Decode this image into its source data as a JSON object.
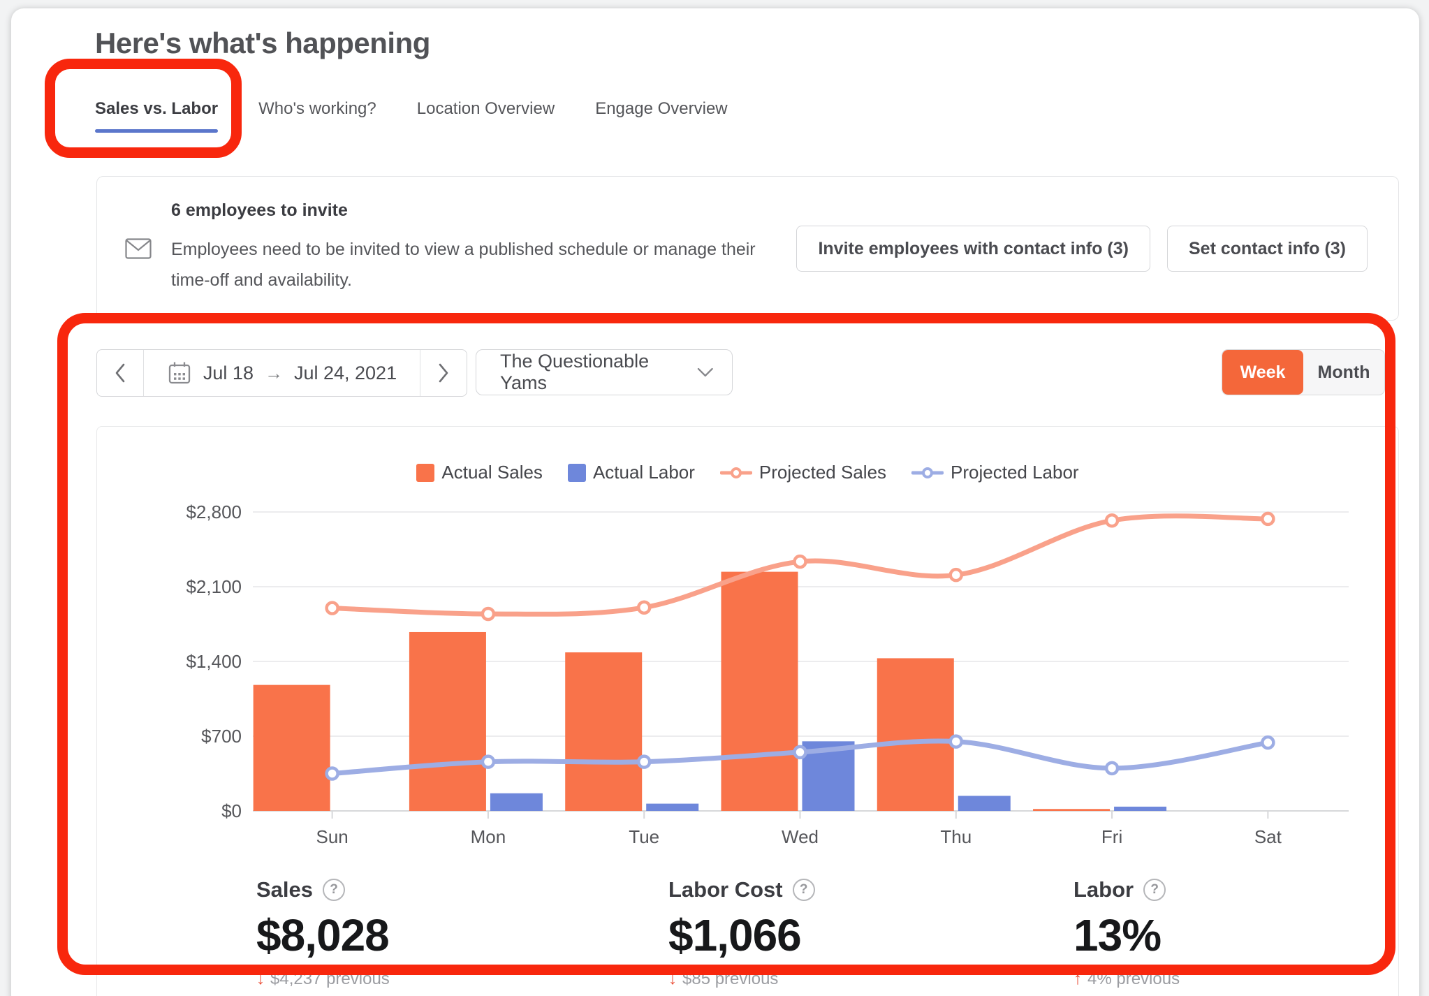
{
  "header": {
    "title": "Here's what's happening"
  },
  "tabs": [
    {
      "label": "Sales vs. Labor",
      "active": true
    },
    {
      "label": "Who's working?",
      "active": false
    },
    {
      "label": "Location Overview",
      "active": false
    },
    {
      "label": "Engage Overview",
      "active": false
    }
  ],
  "banner": {
    "title": "6 employees to invite",
    "description": "Employees need to be invited to view a published schedule or manage their time-off and availability.",
    "invite_button": "Invite employees with contact info (3)",
    "set_contact_button": "Set contact info (3)"
  },
  "controls": {
    "date_start": "Jul 18",
    "date_end": "Jul 24, 2021",
    "location": "The Questionable Yams",
    "toggle": [
      "Week",
      "Month"
    ],
    "toggle_selected": "Week"
  },
  "chart_data": {
    "type": "bar",
    "subtype": "grouped bars with overlaid smoothed lines",
    "categories": [
      "Sun",
      "Mon",
      "Tue",
      "Wed",
      "Thu",
      "Fri",
      "Sat"
    ],
    "series": [
      {
        "name": "Actual Sales",
        "type": "bar",
        "color": "#f9734a",
        "values": [
          1180,
          1675,
          1485,
          2240,
          1430,
          18,
          0
        ]
      },
      {
        "name": "Actual Labor",
        "type": "bar",
        "color": "#6e87db",
        "values": [
          0,
          165,
          68,
          652,
          141,
          40,
          0
        ]
      },
      {
        "name": "Projected Sales",
        "type": "line",
        "color": "#f9a18a",
        "values": [
          1900,
          1845,
          1905,
          2335,
          2210,
          2720,
          2735
        ]
      },
      {
        "name": "Projected Labor",
        "type": "line",
        "color": "#9dade4",
        "values": [
          350,
          460,
          460,
          550,
          650,
          400,
          640
        ]
      }
    ],
    "y_ticks": [
      "$0",
      "$700",
      "$1,400",
      "$2,100",
      "$2,800"
    ],
    "y_tick_values": [
      0,
      700,
      1400,
      2100,
      2800
    ],
    "ylim": [
      0,
      2800
    ],
    "legend_position": "top",
    "grid": true
  },
  "stats": [
    {
      "label": "Sales",
      "value": "$8,028",
      "arrow": "↓",
      "previous": "$4,237 previous",
      "direction": "down"
    },
    {
      "label": "Labor Cost",
      "value": "$1,066",
      "arrow": "↓",
      "previous": "$85 previous",
      "direction": "down"
    },
    {
      "label": "Labor",
      "value": "13%",
      "arrow": "↑",
      "previous": "4% previous",
      "direction": "up"
    }
  ],
  "colors": {
    "accent_orange": "#f4673a",
    "actual_sales_bar": "#f9734a",
    "actual_labor_bar": "#6e87db",
    "projected_sales_line": "#f9a18a",
    "projected_labor_line": "#9dade4",
    "tab_underline_blue": "#5b76cb",
    "annotation_red": "#f8270d"
  }
}
